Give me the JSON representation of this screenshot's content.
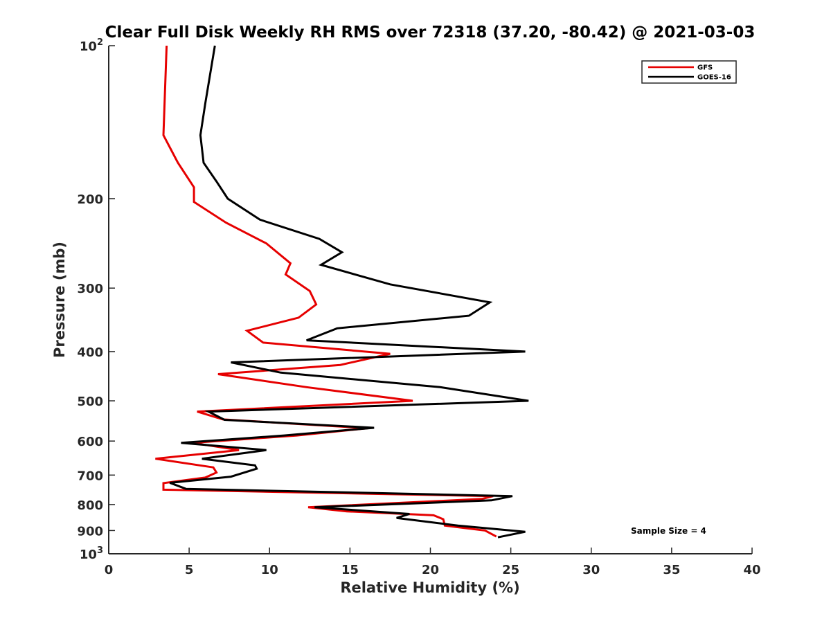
{
  "chart_data": {
    "type": "line",
    "title": "Clear Full Disk Weekly RH RMS over 72318 (37.20, -80.42) @ 2021-03-03",
    "xlabel": "Relative Humidity (%)",
    "ylabel": "Pressure (mb)",
    "xlim": [
      0,
      40
    ],
    "ylim": [
      100,
      1000
    ],
    "y_scale": "log",
    "y_reversed": true,
    "x_ticks": [
      "0",
      "5",
      "10",
      "15",
      "20",
      "25",
      "30",
      "35",
      "40"
    ],
    "y_ticks": [
      {
        "value": 100,
        "base": "10",
        "exp": "2"
      },
      {
        "value": 200,
        "label": "200"
      },
      {
        "value": 300,
        "label": "300"
      },
      {
        "value": 400,
        "label": "400"
      },
      {
        "value": 500,
        "label": "500"
      },
      {
        "value": 600,
        "label": "600"
      },
      {
        "value": 700,
        "label": "700"
      },
      {
        "value": 800,
        "label": "800"
      },
      {
        "value": 900,
        "label": "900"
      },
      {
        "value": 1000,
        "base": "10",
        "exp": "3"
      }
    ],
    "legend": {
      "placement": "top-right"
    },
    "annotation": "Sample Size = 4",
    "series": [
      {
        "name": "GFS",
        "color": "#e60000",
        "points": [
          [
            3.6,
            100
          ],
          [
            3.4,
            150
          ],
          [
            4.3,
            170
          ],
          [
            5.3,
            190
          ],
          [
            5.3,
            203
          ],
          [
            7.3,
            223
          ],
          [
            9.8,
            245
          ],
          [
            11.3,
            268
          ],
          [
            11.0,
            282
          ],
          [
            12.5,
            304
          ],
          [
            12.9,
            323
          ],
          [
            11.8,
            343
          ],
          [
            8.6,
            364
          ],
          [
            9.6,
            384
          ],
          [
            17.5,
            404
          ],
          [
            14.4,
            425
          ],
          [
            6.8,
            443
          ],
          [
            12.3,
            470
          ],
          [
            18.9,
            500
          ],
          [
            5.5,
            525
          ],
          [
            7.1,
            544
          ],
          [
            16.1,
            566
          ],
          [
            11.7,
            585
          ],
          [
            5.2,
            605
          ],
          [
            8.1,
            625
          ],
          [
            2.9,
            650
          ],
          [
            6.5,
            676
          ],
          [
            6.7,
            692
          ],
          [
            6.0,
            708
          ],
          [
            3.4,
            726
          ],
          [
            3.4,
            748
          ],
          [
            23.9,
            770
          ],
          [
            23.2,
            780
          ],
          [
            12.4,
            810
          ],
          [
            14.8,
            825
          ],
          [
            20.2,
            840
          ],
          [
            20.8,
            855
          ],
          [
            20.9,
            880
          ],
          [
            23.4,
            900
          ],
          [
            24.1,
            925
          ]
        ]
      },
      {
        "name": "GOES-16",
        "color": "#000000",
        "points": [
          [
            6.6,
            100
          ],
          [
            6.0,
            130
          ],
          [
            5.7,
            150
          ],
          [
            5.9,
            170
          ],
          [
            6.7,
            185
          ],
          [
            7.4,
            200
          ],
          [
            9.4,
            220
          ],
          [
            13.1,
            240
          ],
          [
            14.5,
            255
          ],
          [
            13.2,
            270
          ],
          [
            17.5,
            295
          ],
          [
            23.7,
            320
          ],
          [
            22.4,
            340
          ],
          [
            14.2,
            360
          ],
          [
            12.3,
            380
          ],
          [
            25.9,
            400
          ],
          [
            7.6,
            420
          ],
          [
            10.7,
            440
          ],
          [
            20.6,
            470
          ],
          [
            26.1,
            500
          ],
          [
            6.2,
            525
          ],
          [
            7.2,
            545
          ],
          [
            16.5,
            565
          ],
          [
            10.9,
            585
          ],
          [
            4.5,
            605
          ],
          [
            9.8,
            625
          ],
          [
            5.8,
            650
          ],
          [
            9.1,
            670
          ],
          [
            9.2,
            680
          ],
          [
            7.6,
            705
          ],
          [
            3.8,
            725
          ],
          [
            4.8,
            745
          ],
          [
            25.1,
            770
          ],
          [
            23.8,
            785
          ],
          [
            12.8,
            810
          ],
          [
            18.7,
            835
          ],
          [
            17.9,
            850
          ],
          [
            21.7,
            880
          ],
          [
            25.9,
            905
          ],
          [
            24.2,
            928
          ]
        ]
      }
    ]
  }
}
